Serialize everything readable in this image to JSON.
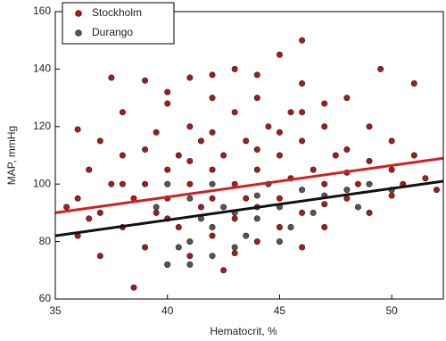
{
  "chart_data": {
    "type": "scatter",
    "x_label": "Hematocrit, %",
    "y_label": "MAP, mmHg",
    "xlim": [
      35,
      52.3
    ],
    "ylim": [
      60,
      160
    ],
    "xticks": [
      35,
      40,
      45,
      50
    ],
    "yticks": [
      60,
      80,
      100,
      120,
      140,
      160
    ],
    "legend": "top-left",
    "series": [
      {
        "name": "Stockholm",
        "color": "#a31d1d",
        "x": [
          36,
          36,
          36,
          36.5,
          37,
          37,
          37.5,
          37.5,
          38,
          38,
          38,
          38.5,
          38.5,
          39,
          39,
          39,
          39.5,
          39.5,
          40,
          40,
          40,
          40,
          40.5,
          40.5,
          41,
          41,
          41,
          41,
          41.5,
          41.5,
          42,
          42,
          42,
          42,
          42.5,
          42.5,
          43,
          43,
          43,
          43,
          43.5,
          43.5,
          44,
          44,
          44,
          44,
          44.5,
          44.5,
          45,
          45,
          45,
          45,
          45.5,
          45.5,
          46,
          46,
          46,
          46,
          46.5,
          47,
          47,
          47,
          47.5,
          48,
          48,
          48,
          48.5,
          49,
          49,
          49.5,
          50,
          50,
          50.5,
          51,
          51,
          51.5,
          52,
          36.5,
          37,
          38,
          39,
          40,
          41,
          42,
          43,
          44,
          45,
          46,
          47,
          48,
          49,
          50,
          35.5,
          42,
          44,
          40,
          47,
          46
        ],
        "values": [
          95,
          82,
          119,
          105,
          90,
          115,
          100,
          137,
          85,
          110,
          125,
          64,
          95,
          136,
          100,
          78,
          118,
          90,
          105,
          72,
          128,
          95,
          110,
          85,
          100,
          120,
          75,
          137,
          92,
          115,
          105,
          130,
          82,
          95,
          110,
          70,
          100,
          125,
          88,
          140,
          95,
          115,
          105,
          80,
          130,
          92,
          120,
          100,
          110,
          85,
          145,
          95,
          125,
          102,
          150,
          90,
          115,
          135,
          105,
          100,
          120,
          85,
          110,
          95,
          130,
          112,
          100,
          120,
          90,
          140,
          105,
          115,
          100,
          135,
          110,
          102,
          98,
          88,
          75,
          100,
          112,
          88,
          108,
          118,
          76,
          112,
          118,
          78,
          93,
          104,
          108,
          96,
          92,
          138,
          138,
          132,
          128,
          125
        ]
      },
      {
        "name": "Durango",
        "color": "#555555",
        "x": [
          40,
          40.5,
          41,
          41,
          41.5,
          42,
          42.5,
          42,
          43,
          43.5,
          44,
          44,
          44.5,
          45,
          45.5,
          46,
          46.5,
          47,
          48,
          48.5,
          49,
          50,
          41,
          43,
          39.5,
          40,
          42,
          45
        ],
        "values": [
          72,
          78,
          80,
          95,
          88,
          85,
          92,
          75,
          90,
          82,
          96,
          88,
          100,
          92,
          85,
          98,
          90,
          96,
          98,
          92,
          100,
          98,
          72,
          78,
          92,
          100,
          100,
          80
        ]
      }
    ],
    "lines": [
      {
        "color": "#d42020",
        "x": [
          35,
          52.3
        ],
        "values": [
          90,
          109
        ]
      },
      {
        "color": "#111111",
        "x": [
          35,
          52.3
        ],
        "values": [
          82,
          101
        ]
      }
    ]
  }
}
